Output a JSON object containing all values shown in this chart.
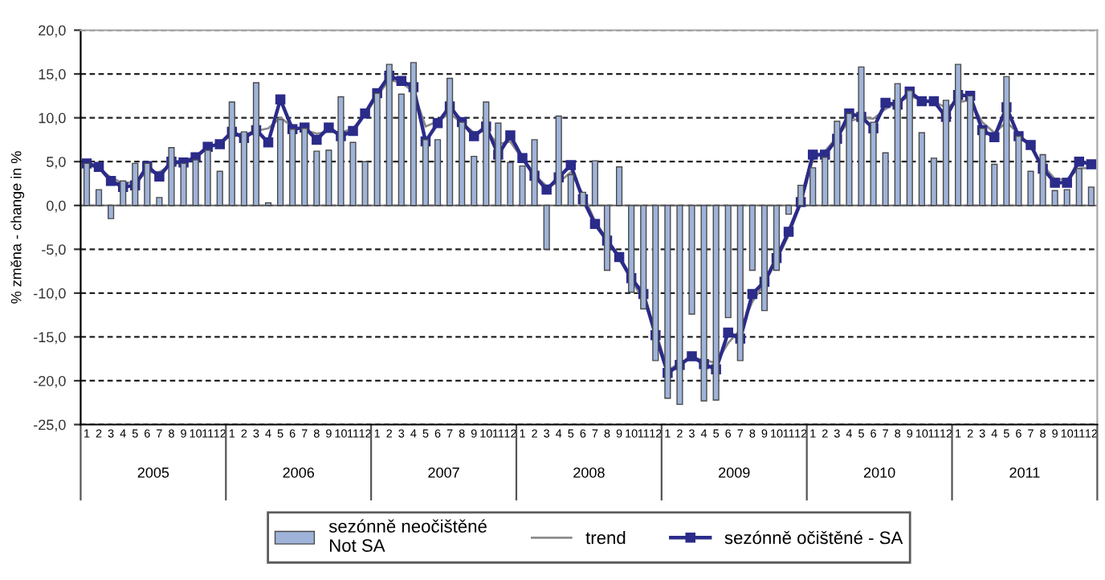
{
  "chart_data": {
    "type": "bar",
    "ylabel": "% změna - change in %",
    "categories": [
      "1",
      "2",
      "3",
      "4",
      "5",
      "6",
      "7",
      "8",
      "9",
      "10",
      "11",
      "12",
      "1",
      "2",
      "3",
      "4",
      "5",
      "6",
      "7",
      "8",
      "9",
      "10",
      "11",
      "12",
      "1",
      "2",
      "3",
      "4",
      "5",
      "6",
      "7",
      "8",
      "9",
      "10",
      "11",
      "12",
      "1",
      "2",
      "3",
      "4",
      "5",
      "6",
      "7",
      "8",
      "9",
      "10",
      "11",
      "12",
      "1",
      "2",
      "3",
      "4",
      "5",
      "6",
      "7",
      "8",
      "9",
      "10",
      "11",
      "12",
      "1",
      "2",
      "3",
      "4",
      "5",
      "6",
      "7",
      "8",
      "9",
      "10",
      "11",
      "12",
      "1",
      "2",
      "3",
      "4",
      "5",
      "6",
      "7",
      "8",
      "9",
      "10",
      "11",
      "12"
    ],
    "annotations": [
      "2005",
      "2006",
      "2007",
      "2008",
      "2009",
      "2010",
      "2011"
    ],
    "series": [
      {
        "name": "sezónně neočištěné\nNot SA",
        "color": "#9fb3d9",
        "values": [
          4.8,
          1.8,
          -1.5,
          2.8,
          4.8,
          4.8,
          0.9,
          6.6,
          4.8,
          5.2,
          6.3,
          3.9,
          11.8,
          8.4,
          14.0,
          0.3,
          9.8,
          8.7,
          8.8,
          6.2,
          6.3,
          12.4,
          7.2,
          5.0,
          12.8,
          16.1,
          12.7,
          16.3,
          7.5,
          7.5,
          14.5,
          9.5,
          5.6,
          11.8,
          9.4,
          4.9,
          4.5,
          7.5,
          -5.0,
          10.2,
          3.5,
          1.5,
          5.1,
          -7.4,
          4.4,
          -9.9,
          -11.8,
          -17.7,
          -22.0,
          -22.7,
          -12.4,
          -22.3,
          -22.2,
          -12.8,
          -17.7,
          -7.4,
          -12.0,
          -7.4,
          -1.0,
          2.3,
          4.3,
          5.5,
          9.6,
          10.5,
          15.8,
          9.5,
          6.0,
          13.9,
          13.1,
          8.3,
          5.4,
          12.0,
          16.1,
          12.5,
          8.8,
          4.7,
          14.7,
          7.9,
          3.9,
          5.8,
          1.7,
          1.8,
          4.2,
          2.1
        ]
      },
      {
        "name": "trend",
        "type": "line",
        "color": "#8c8c8c",
        "marker": "none",
        "values": [
          4.7,
          4.2,
          3.2,
          2.5,
          2.7,
          3.8,
          3.8,
          4.6,
          5.0,
          5.6,
          6.5,
          7.2,
          8.0,
          8.1,
          8.5,
          8.8,
          10.0,
          9.0,
          8.6,
          8.2,
          8.4,
          8.3,
          8.8,
          10.3,
          12.5,
          14.3,
          14.0,
          13.0,
          9.0,
          9.6,
          10.5,
          9.4,
          8.3,
          8.5,
          7.0,
          7.3,
          5.3,
          3.5,
          2.2,
          2.6,
          3.8,
          1.3,
          -1.8,
          -3.9,
          -6.1,
          -8.5,
          -10.8,
          -14.2,
          -18.8,
          -18.0,
          -17.4,
          -17.6,
          -18.0,
          -15.7,
          -14.2,
          -11.0,
          -8.9,
          -6.3,
          -3.4,
          0.2,
          5.2,
          6.2,
          7.8,
          9.6,
          10.0,
          9.9,
          11.0,
          11.8,
          12.4,
          12.1,
          11.8,
          11.2,
          11.8,
          12.0,
          9.5,
          8.3,
          9.5,
          8.2,
          6.6,
          4.6,
          3.0,
          3.0,
          4.2,
          4.3
        ]
      },
      {
        "name": "sezónně očištěné - SA",
        "type": "line",
        "color": "#2b2b8a",
        "marker": "square",
        "values": [
          4.8,
          4.4,
          2.8,
          2.1,
          2.3,
          4.5,
          3.3,
          5.0,
          4.9,
          5.5,
          6.7,
          7.0,
          8.4,
          7.7,
          8.6,
          7.2,
          12.1,
          8.7,
          8.9,
          7.5,
          8.9,
          7.9,
          8.5,
          10.5,
          12.8,
          14.8,
          14.2,
          13.5,
          7.3,
          9.4,
          11.3,
          9.5,
          7.9,
          9.0,
          5.8,
          8.0,
          5.4,
          3.4,
          1.8,
          3.2,
          4.6,
          0.7,
          -2.1,
          -4.0,
          -5.9,
          -8.3,
          -10.1,
          -14.8,
          -19.1,
          -18.2,
          -17.2,
          -18.1,
          -18.7,
          -14.5,
          -15.2,
          -10.1,
          -8.7,
          -6.0,
          -3.0,
          0.4,
          5.8,
          5.8,
          7.6,
          10.5,
          10.1,
          8.8,
          11.7,
          11.5,
          13.0,
          11.9,
          11.9,
          10.1,
          12.6,
          12.5,
          8.6,
          7.8,
          11.2,
          7.9,
          6.9,
          4.2,
          2.6,
          2.6,
          5.0,
          4.7
        ]
      }
    ],
    "ylim": [
      -25,
      20
    ],
    "yticks": [
      {
        "value": -25,
        "label": "-25,0"
      },
      {
        "value": -20,
        "label": "-20,0"
      },
      {
        "value": -15,
        "label": "-15,0"
      },
      {
        "value": -10,
        "label": "-10,0"
      },
      {
        "value": -5,
        "label": "-5,0"
      },
      {
        "value": 0,
        "label": "0,0"
      },
      {
        "value": 5,
        "label": "5,0"
      },
      {
        "value": 10,
        "label": "10,0"
      },
      {
        "value": 15,
        "label": "15,0"
      },
      {
        "value": 20,
        "label": "20,0"
      }
    ],
    "grid": "y",
    "legend": "bottom"
  }
}
